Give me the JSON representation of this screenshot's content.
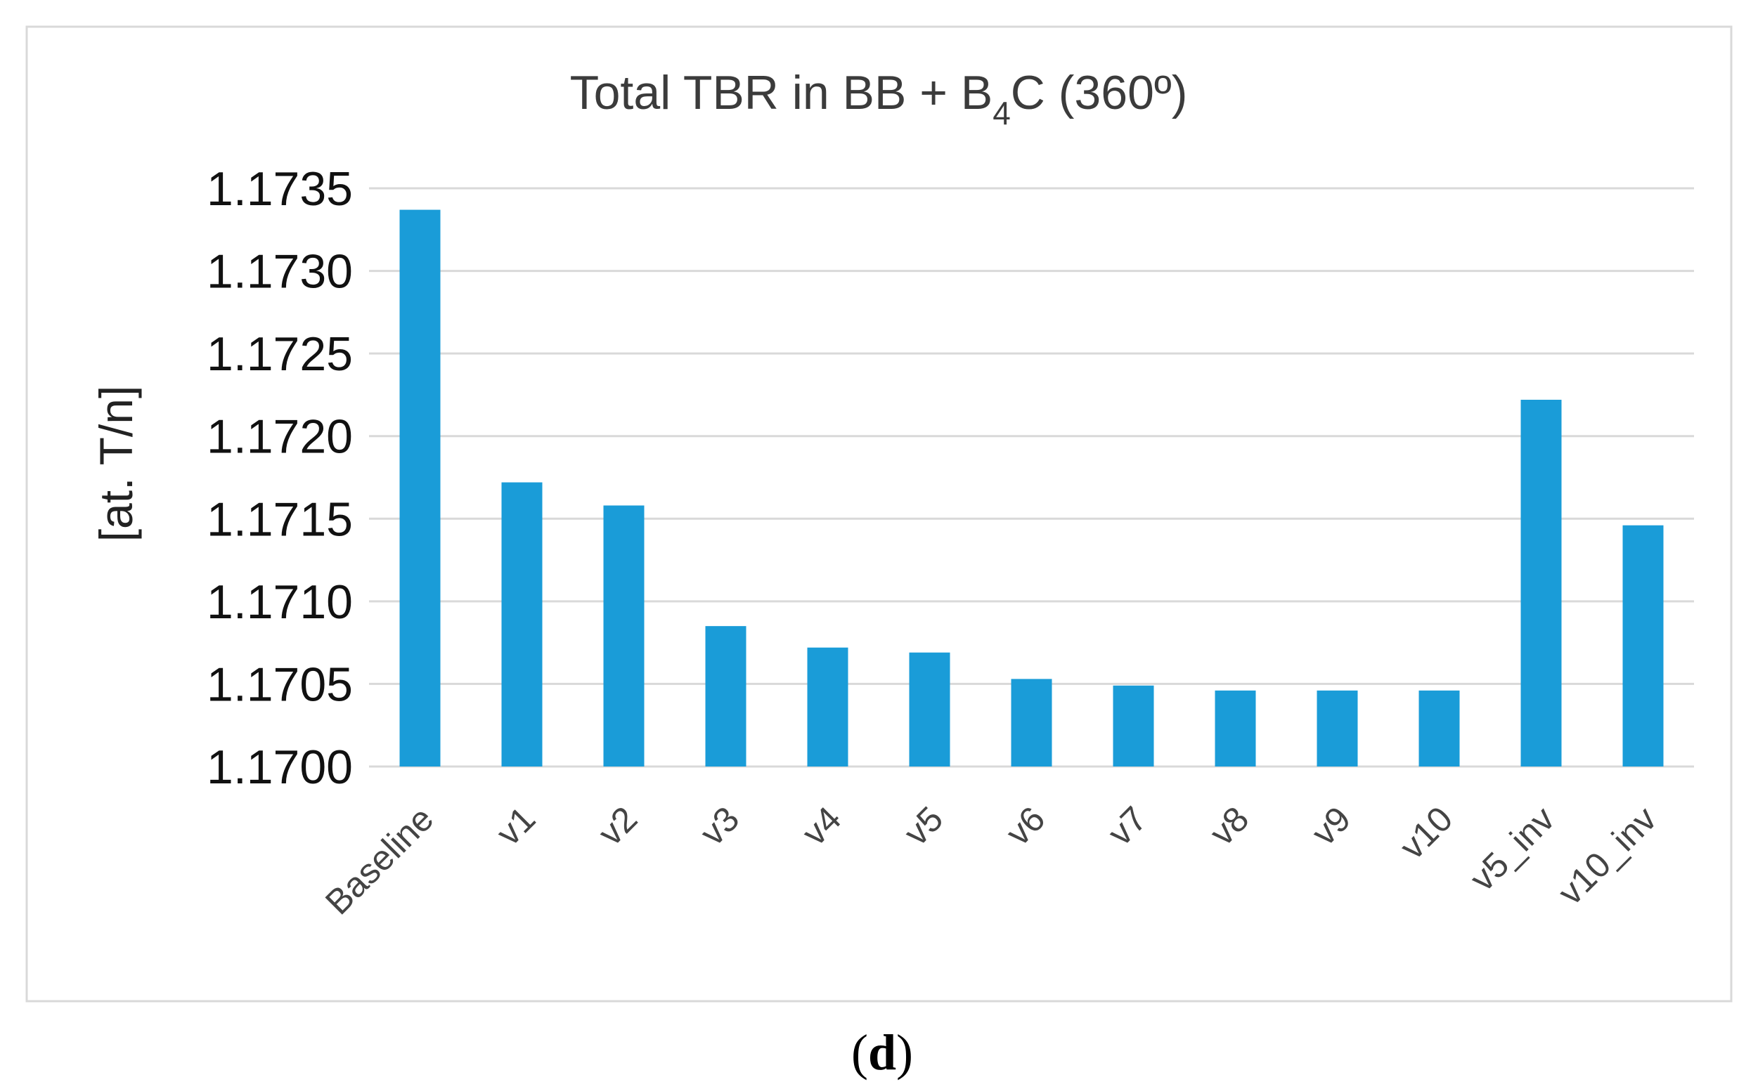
{
  "chart_data": {
    "type": "bar",
    "title": {
      "prefix": "Total TBR in BB + ",
      "chem_base": "B",
      "chem_subscript": "4",
      "suffix": "C (360º)"
    },
    "ylabel": "[at. T/n]",
    "xlabel": "",
    "ylim": [
      1.17,
      1.1735
    ],
    "yticks": [
      "1.1700",
      "1.1705",
      "1.1710",
      "1.1715",
      "1.1720",
      "1.1725",
      "1.1730",
      "1.1735"
    ],
    "categories": [
      "Baseline",
      "v1",
      "v2",
      "v3",
      "v4",
      "v5",
      "v6",
      "v7",
      "v8",
      "v9",
      "v10",
      "v5_inv",
      "v10_inv"
    ],
    "values": [
      1.17337,
      1.17172,
      1.17158,
      1.17085,
      1.17072,
      1.17069,
      1.17053,
      1.17049,
      1.17046,
      1.17046,
      1.17046,
      1.17222,
      1.17146
    ],
    "bar_color": "#1a9cd8",
    "grid": true,
    "legend": "none"
  },
  "caption": {
    "open": "(",
    "letter": "d",
    "close": ")"
  }
}
